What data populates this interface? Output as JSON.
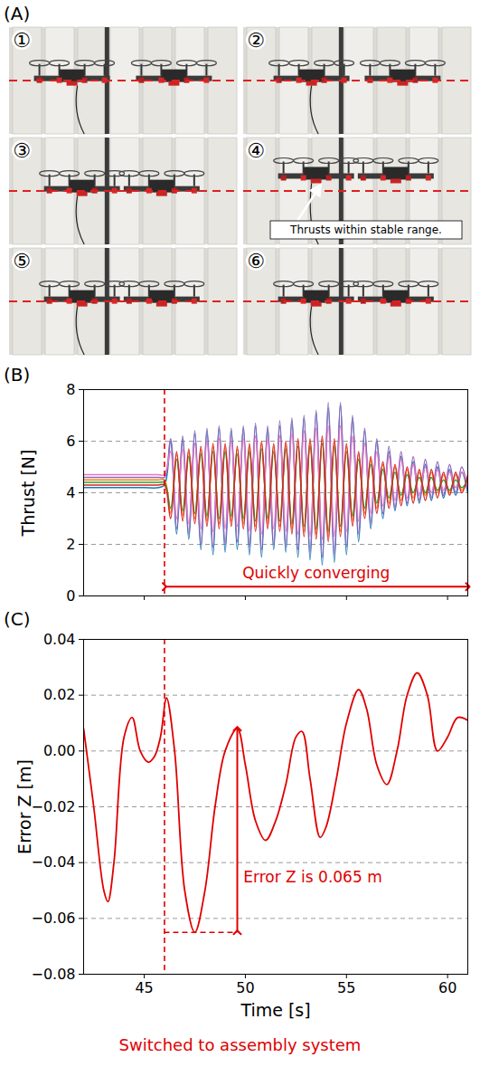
{
  "photo_panel": {
    "label": "(A)",
    "frames": [
      "①",
      "②",
      "③",
      "④",
      "⑤",
      "⑥"
    ],
    "annotation": {
      "frame": "④",
      "text": "Thrusts within stable range."
    }
  },
  "chart_data": [
    {
      "panel": "(B)",
      "type": "line",
      "y_label": "Thrust [N]",
      "xlim": [
        42,
        61
      ],
      "xticks": [
        45,
        50,
        55,
        60
      ],
      "ylim": [
        0,
        8
      ],
      "yticks": [
        0,
        2,
        4,
        6,
        8
      ],
      "grid": true,
      "tick_labels": "y",
      "annotation": {
        "text": "Quickly converging",
        "x": 46
      },
      "x": [
        42.0,
        43.0,
        44.0,
        45.0,
        45.7,
        46.0,
        46.3,
        46.6,
        46.9,
        47.2,
        47.5,
        47.8,
        48.1,
        48.4,
        48.7,
        49.0,
        49.3,
        49.6,
        49.9,
        50.2,
        50.5,
        50.8,
        51.1,
        51.4,
        51.7,
        52.0,
        52.3,
        52.6,
        52.9,
        53.2,
        53.5,
        53.8,
        54.1,
        54.4,
        54.7,
        55.0,
        55.3,
        55.6,
        55.9,
        56.2,
        56.5,
        56.8,
        57.1,
        57.4,
        57.7,
        58.0,
        58.3,
        58.6,
        58.9,
        59.2,
        59.5,
        59.8,
        60.1,
        60.4,
        60.7,
        61.0
      ],
      "series": [
        {
          "color": "#1f77b4",
          "values": [
            4.2,
            4.2,
            4.2,
            4.2,
            4.2,
            4.3,
            6.0,
            2.4,
            6.1,
            2.2,
            6.3,
            1.8,
            6.4,
            1.6,
            6.5,
            1.7,
            6.4,
            1.8,
            6.5,
            1.6,
            6.6,
            1.5,
            6.5,
            1.8,
            6.6,
            1.7,
            6.8,
            1.5,
            6.9,
            1.4,
            7.1,
            1.2,
            7.3,
            1.3,
            7.4,
            1.6,
            6.9,
            2.1,
            6.4,
            2.6,
            6.0,
            3.0,
            5.6,
            3.3,
            5.4,
            3.5,
            5.2,
            3.6,
            5.1,
            3.7,
            5.0,
            3.8,
            4.9,
            3.9,
            4.8,
            4.0
          ]
        },
        {
          "color": "#9467bd",
          "values": [
            4.6,
            4.6,
            4.6,
            4.6,
            4.6,
            4.6,
            6.1,
            2.6,
            6.2,
            2.4,
            6.4,
            2.0,
            6.5,
            1.9,
            6.6,
            2.0,
            6.5,
            2.1,
            6.6,
            1.9,
            6.7,
            1.8,
            6.6,
            2.0,
            6.8,
            1.9,
            6.9,
            1.8,
            7.0,
            1.7,
            7.2,
            1.5,
            7.5,
            1.6,
            7.5,
            1.9,
            7.0,
            2.4,
            6.5,
            2.8,
            6.1,
            3.2,
            5.8,
            3.4,
            5.6,
            3.6,
            5.4,
            3.7,
            5.3,
            3.8,
            5.2,
            3.9,
            5.1,
            4.0,
            5.0,
            4.1
          ]
        },
        {
          "color": "#e377c2",
          "values": [
            4.7,
            4.7,
            4.7,
            4.7,
            4.7,
            4.7,
            5.6,
            3.0,
            5.7,
            2.8,
            5.9,
            2.6,
            6.0,
            2.5,
            6.1,
            2.6,
            6.0,
            2.7,
            6.1,
            2.5,
            6.2,
            2.4,
            6.1,
            2.6,
            6.2,
            2.5,
            6.3,
            2.4,
            6.4,
            2.3,
            6.5,
            2.2,
            6.6,
            2.3,
            6.6,
            2.5,
            6.2,
            2.9,
            5.9,
            3.2,
            5.6,
            3.5,
            5.4,
            3.7,
            5.3,
            3.8,
            5.1,
            3.9,
            5.0,
            4.0,
            4.9,
            4.1,
            4.8,
            4.2,
            4.8,
            4.3
          ]
        },
        {
          "color": "#ff7f0e",
          "values": [
            4.5,
            4.5,
            4.5,
            4.5,
            4.5,
            4.5,
            3.2,
            5.5,
            3.1,
            5.6,
            3.0,
            5.7,
            2.9,
            5.8,
            2.8,
            5.8,
            2.9,
            5.7,
            2.8,
            5.8,
            2.7,
            5.9,
            2.8,
            5.8,
            2.7,
            5.9,
            2.6,
            6.0,
            2.5,
            6.0,
            2.4,
            6.1,
            2.3,
            6.0,
            2.5,
            5.8,
            2.9,
            5.5,
            3.2,
            5.3,
            3.4,
            5.1,
            3.6,
            5.0,
            3.7,
            4.9,
            3.8,
            4.8,
            3.9,
            4.8,
            4.0,
            4.7,
            4.0,
            4.7,
            4.1,
            4.6
          ]
        },
        {
          "color": "#2ca02c",
          "values": [
            4.4,
            4.4,
            4.4,
            4.4,
            4.4,
            4.4,
            3.4,
            5.3,
            3.3,
            5.4,
            3.2,
            5.5,
            3.1,
            5.6,
            3.0,
            5.6,
            3.1,
            5.5,
            3.0,
            5.6,
            2.9,
            5.7,
            3.0,
            5.6,
            2.9,
            5.7,
            2.8,
            5.8,
            2.7,
            5.8,
            2.6,
            5.9,
            2.5,
            5.8,
            2.7,
            5.6,
            3.1,
            5.3,
            3.4,
            5.1,
            3.6,
            4.9,
            3.8,
            4.8,
            3.9,
            4.7,
            4.0,
            4.6,
            4.0,
            4.6,
            4.1,
            4.5,
            4.1,
            4.5,
            4.2,
            4.5
          ]
        },
        {
          "color": "#d62728",
          "values": [
            4.3,
            4.3,
            4.3,
            4.3,
            4.3,
            4.3,
            3.0,
            5.6,
            2.9,
            5.7,
            2.8,
            5.8,
            2.7,
            5.9,
            2.6,
            5.9,
            2.7,
            5.8,
            2.6,
            5.9,
            2.5,
            6.0,
            2.6,
            5.9,
            2.5,
            6.0,
            2.4,
            6.1,
            2.3,
            6.1,
            2.2,
            6.2,
            2.1,
            6.1,
            2.3,
            5.9,
            2.7,
            5.6,
            3.0,
            5.4,
            3.2,
            5.2,
            3.4,
            5.1,
            3.5,
            5.0,
            3.6,
            4.9,
            3.7,
            4.9,
            3.8,
            4.8,
            3.9,
            4.8,
            4.0,
            4.7
          ]
        }
      ]
    },
    {
      "panel": "(C)",
      "type": "line",
      "x_label": "Time [s]",
      "y_label": "Error Z [m]",
      "xlim": [
        42,
        61
      ],
      "xticks": [
        45,
        50,
        55,
        60
      ],
      "ylim": [
        -0.08,
        0.04
      ],
      "yticks": [
        {
          "value": -0.08,
          "label": "−0.08"
        },
        {
          "value": -0.06,
          "label": "−0.06"
        },
        {
          "value": -0.04,
          "label": "−0.04"
        },
        {
          "value": -0.02,
          "label": "−0.02"
        },
        {
          "value": 0,
          "label": "0.00"
        },
        {
          "value": 0.02,
          "label": "0.02"
        },
        {
          "value": 0.04,
          "label": "0.04"
        }
      ],
      "grid": true,
      "color": "#e00000",
      "annotation": {
        "text": "Error Z is 0.065 m"
      },
      "event": {
        "text": "Switched to assembly system",
        "x": 46
      },
      "x": [
        42.0,
        42.5,
        43.0,
        43.2,
        43.5,
        44.0,
        44.4,
        44.8,
        45.2,
        45.5,
        45.8,
        46.1,
        46.5,
        47.0,
        47.5,
        48.0,
        48.5,
        49.0,
        49.6,
        50.0,
        50.5,
        51.0,
        51.5,
        52.0,
        52.5,
        52.8,
        53.2,
        53.7,
        54.0,
        54.5,
        55.0,
        55.6,
        56.0,
        56.5,
        57.0,
        57.5,
        58.0,
        58.5,
        59.0,
        59.5,
        60.0,
        60.5,
        61.0
      ],
      "values": [
        0.008,
        -0.02,
        -0.05,
        -0.054,
        -0.04,
        0.005,
        0.012,
        0.0,
        -0.004,
        -0.002,
        0.005,
        0.019,
        0.0,
        -0.05,
        -0.065,
        -0.05,
        -0.02,
        0.0,
        0.008,
        -0.005,
        -0.025,
        -0.032,
        -0.025,
        -0.012,
        0.005,
        0.007,
        -0.01,
        -0.031,
        -0.027,
        -0.01,
        0.01,
        0.022,
        0.015,
        -0.005,
        -0.012,
        0.0,
        0.02,
        0.028,
        0.02,
        0.0,
        0.005,
        0.012,
        0.011
      ]
    }
  ]
}
